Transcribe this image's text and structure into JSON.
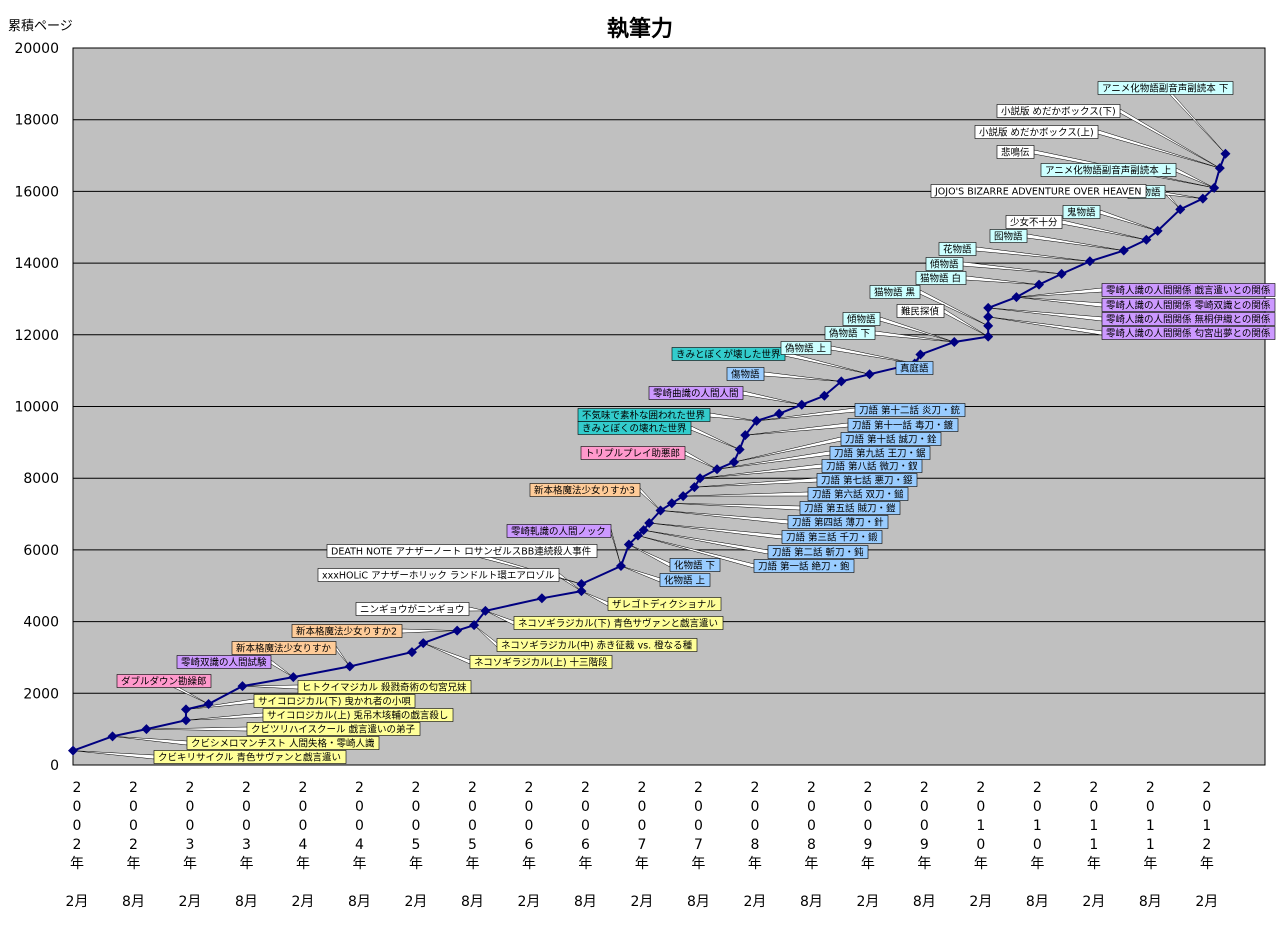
{
  "chart_data": {
    "type": "line",
    "title": "執筆力",
    "ylabel": "累積ページ",
    "xlabel": "",
    "ylim": [
      0,
      20000
    ],
    "yticks": [
      "0",
      "2000",
      "4000",
      "6000",
      "8000",
      "10000",
      "12000",
      "14000",
      "16000",
      "18000",
      "20000"
    ],
    "xticks": [
      "2002年2月",
      "2002年8月",
      "2003年2月",
      "2003年8月",
      "2004年2月",
      "2004年8月",
      "2005年2月",
      "2005年8月",
      "2006年2月",
      "2006年8月",
      "2007年2月",
      "2007年8月",
      "2008年2月",
      "2008年8月",
      "2009年2月",
      "2009年8月",
      "2010年2月",
      "2010年8月",
      "2011年2月",
      "2011年8月",
      "2012年2月"
    ],
    "grid": true,
    "colors": {
      "line": "#000080",
      "plot_bg": "#c0c0c0",
      "yellow": "#ffff99",
      "purple": "#cc99ff",
      "pink": "#ff99cc",
      "orange": "#ffcc99",
      "teal": "#33cccc",
      "blue": "#99ccff",
      "cyan": "#ccffff",
      "white": "#ffffff"
    },
    "series": [
      {
        "name": "",
        "x": [
          2002.0,
          2002.35,
          2002.65,
          2003.0,
          2003.0,
          2003.2,
          2003.5,
          2003.95,
          2004.45,
          2005.0,
          2005.1,
          2005.4,
          2005.55,
          2005.65,
          2006.15,
          2006.5,
          2006.5,
          2006.85,
          2006.92,
          2007.0,
          2007.05,
          2007.1,
          2007.2,
          2007.3,
          2007.4,
          2007.5,
          2007.55,
          2007.7,
          2007.85,
          2007.9,
          2007.95,
          2008.05,
          2008.25,
          2008.45,
          2008.65,
          2008.8,
          2009.05,
          2009.45,
          2009.5,
          2009.8,
          2010.1,
          2010.1,
          2010.1,
          2010.1,
          2010.35,
          2010.55,
          2010.75,
          2011.0,
          2011.3,
          2011.5,
          2011.6,
          2011.8,
          2012.0,
          2012.1,
          2012.15,
          2012.2
        ],
        "y": [
          400,
          800,
          1000,
          1250,
          1550,
          1700,
          2200,
          2450,
          2750,
          3150,
          3400,
          3750,
          3900,
          4300,
          4650,
          4850,
          5050,
          5550,
          6150,
          6400,
          6550,
          6750,
          7100,
          7300,
          7500,
          7750,
          8000,
          8250,
          8450,
          8800,
          9200,
          9600,
          9800,
          10050,
          10300,
          10700,
          10900,
          11200,
          11450,
          11800,
          11950,
          12250,
          12500,
          12750,
          13050,
          13400,
          13700,
          14050,
          14350,
          14650,
          14900,
          15500,
          15800,
          16100,
          16650,
          17050
        ],
        "values": [
          400,
          800,
          1000,
          1250,
          1550,
          1700,
          2200,
          2450,
          2750,
          3150,
          3400,
          3750,
          3900,
          4300,
          4650,
          4850,
          5050,
          5550,
          6150,
          6400,
          6550,
          6750,
          7100,
          7300,
          7500,
          7750,
          8000,
          8250,
          8450,
          8800,
          9200,
          9600,
          9800,
          10050,
          10300,
          10700,
          10900,
          11200,
          11450,
          11800,
          11950,
          12250,
          12500,
          12750,
          13050,
          13400,
          13700,
          14050,
          14350,
          14650,
          14900,
          15500,
          15800,
          16100,
          16650,
          17050
        ]
      }
    ],
    "annotations": [
      {
        "text": "クビキリサイクル 青色サヴァンと戯言遣い",
        "color": "yellow",
        "pt": 0
      },
      {
        "text": "クビシメロマンチスト 人間失格・零崎人識",
        "color": "yellow",
        "pt": 1
      },
      {
        "text": "クビツリハイスクール 戯言遣いの弟子",
        "color": "yellow",
        "pt": 2
      },
      {
        "text": "サイコロジカル(上) 兎吊木垓輔の戯言殺し",
        "color": "yellow",
        "pt": 3
      },
      {
        "text": "サイコロジカル(下) 曳かれ者の小唄",
        "color": "yellow",
        "pt": 4
      },
      {
        "text": "ヒトクイマジカル 殺戮奇術の匂宮兄妹",
        "color": "yellow",
        "pt": 6
      },
      {
        "text": "ダブルダウン勘繰郎",
        "color": "pink",
        "pt": 5
      },
      {
        "text": "零崎双識の人間試験",
        "color": "purple",
        "pt": 7
      },
      {
        "text": "新本格魔法少女りすか",
        "color": "orange",
        "pt": 8
      },
      {
        "text": "新本格魔法少女りすか2",
        "color": "orange",
        "pt": 11
      },
      {
        "text": "ネコソギラジカル(上) 十三階段",
        "color": "yellow",
        "pt": 10
      },
      {
        "text": "ネコソギラジカル(中) 赤き征裁 vs. 橙なる種",
        "color": "yellow",
        "pt": 12
      },
      {
        "text": "ニンギョウがニンギョウ",
        "color": "white",
        "pt": 13
      },
      {
        "text": "ネコソギラジカル(下) 青色サヴァンと戯言遣い",
        "color": "yellow",
        "pt": 13
      },
      {
        "text": "ザレゴトディクショナル",
        "color": "yellow",
        "pt": 15
      },
      {
        "text": "xxxHOLiC アナザーホリック ランドルト環エアロゾル",
        "color": "white",
        "pt": 15
      },
      {
        "text": "DEATH NOTE アナザーノート ロサンゼルスBB連続殺人事件",
        "color": "white",
        "pt": 16
      },
      {
        "text": "零崎軋識の人間ノック",
        "color": "purple",
        "pt": 17
      },
      {
        "text": "化物語 上",
        "color": "blue",
        "pt": 17
      },
      {
        "text": "化物語 下",
        "color": "blue",
        "pt": 18
      },
      {
        "text": "新本格魔法少女りすか3",
        "color": "orange",
        "pt": 22
      },
      {
        "text": "刀語 第一話 絶刀・鉋",
        "color": "blue",
        "pt": 19
      },
      {
        "text": "刀語 第二話 斬刀・鈍",
        "color": "blue",
        "pt": 20
      },
      {
        "text": "刀語 第三話 千刀・鎩",
        "color": "blue",
        "pt": 21
      },
      {
        "text": "刀語 第四話 薄刀・針",
        "color": "blue",
        "pt": 22
      },
      {
        "text": "刀語 第五話 賊刀・鎧",
        "color": "blue",
        "pt": 23
      },
      {
        "text": "刀語 第六話 双刀・鎚",
        "color": "blue",
        "pt": 24
      },
      {
        "text": "刀語 第七話 悪刀・鐚",
        "color": "blue",
        "pt": 25
      },
      {
        "text": "刀語 第八話 微刀・釵",
        "color": "blue",
        "pt": 26
      },
      {
        "text": "刀語 第九話 王刀・鋸",
        "color": "blue",
        "pt": 27
      },
      {
        "text": "トリプルプレイ助悪郎",
        "color": "pink",
        "pt": 27
      },
      {
        "text": "刀語 第十話 誠刀・銓",
        "color": "blue",
        "pt": 28
      },
      {
        "text": "刀語 第十一話 毒刀・鍍",
        "color": "blue",
        "pt": 30
      },
      {
        "text": "刀語 第十二話 炎刀・銃",
        "color": "blue",
        "pt": 31
      },
      {
        "text": "きみとぼくの壊れた世界",
        "color": "teal",
        "pt": 29
      },
      {
        "text": "不気味で素朴な囲われた世界",
        "color": "teal",
        "pt": 31
      },
      {
        "text": "零崎曲識の人間人間",
        "color": "purple",
        "pt": 33
      },
      {
        "text": "傷物語",
        "color": "blue",
        "pt": 35
      },
      {
        "text": "きみとぼくが壊した世界",
        "color": "teal",
        "pt": 36
      },
      {
        "text": "偽物語 上",
        "color": "cyan",
        "pt": 37
      },
      {
        "text": "真庭語",
        "color": "blue",
        "pt": 38
      },
      {
        "text": "偽物語 下",
        "color": "cyan",
        "pt": 39
      },
      {
        "text": "傾物語",
        "color": "cyan",
        "pt": 39
      },
      {
        "text": "難民探偵",
        "color": "white",
        "pt": 40
      },
      {
        "text": "猫物語 黒",
        "color": "cyan",
        "pt": 41
      },
      {
        "text": "零崎人識の人間関係 戯言遣いとの関係",
        "color": "purple",
        "pt": 44
      },
      {
        "text": "零崎人識の人間関係 零崎双識との関係",
        "color": "purple",
        "pt": 44
      },
      {
        "text": "零崎人識の人間関係 無桐伊織との関係",
        "color": "purple",
        "pt": 43
      },
      {
        "text": "零崎人識の人間関係 匂宮出夢との関係",
        "color": "purple",
        "pt": 42
      },
      {
        "text": "猫物語 白",
        "color": "cyan",
        "pt": 45
      },
      {
        "text": "傾物語",
        "color": "cyan",
        "pt": 46
      },
      {
        "text": "花物語",
        "color": "cyan",
        "pt": 47
      },
      {
        "text": "囮物語",
        "color": "cyan",
        "pt": 48
      },
      {
        "text": "少女不十分",
        "color": "white",
        "pt": 49
      },
      {
        "text": "鬼物語",
        "color": "cyan",
        "pt": 50
      },
      {
        "text": "恋物語",
        "color": "cyan",
        "pt": 51
      },
      {
        "text": "JOJO'S BIZARRE ADVENTURE OVER HEAVEN",
        "color": "white",
        "pt": 52
      },
      {
        "text": "アニメ化物語副音声副読本 上",
        "color": "cyan",
        "pt": 53
      },
      {
        "text": "悲鳴伝",
        "color": "white",
        "pt": 53
      },
      {
        "text": "小説版 めだかボックス(上)",
        "color": "white",
        "pt": 54
      },
      {
        "text": "小説版 めだかボックス(下)",
        "color": "white",
        "pt": 54
      },
      {
        "text": "アニメ化物語副音声副読本 下",
        "color": "cyan",
        "pt": 55
      }
    ]
  }
}
